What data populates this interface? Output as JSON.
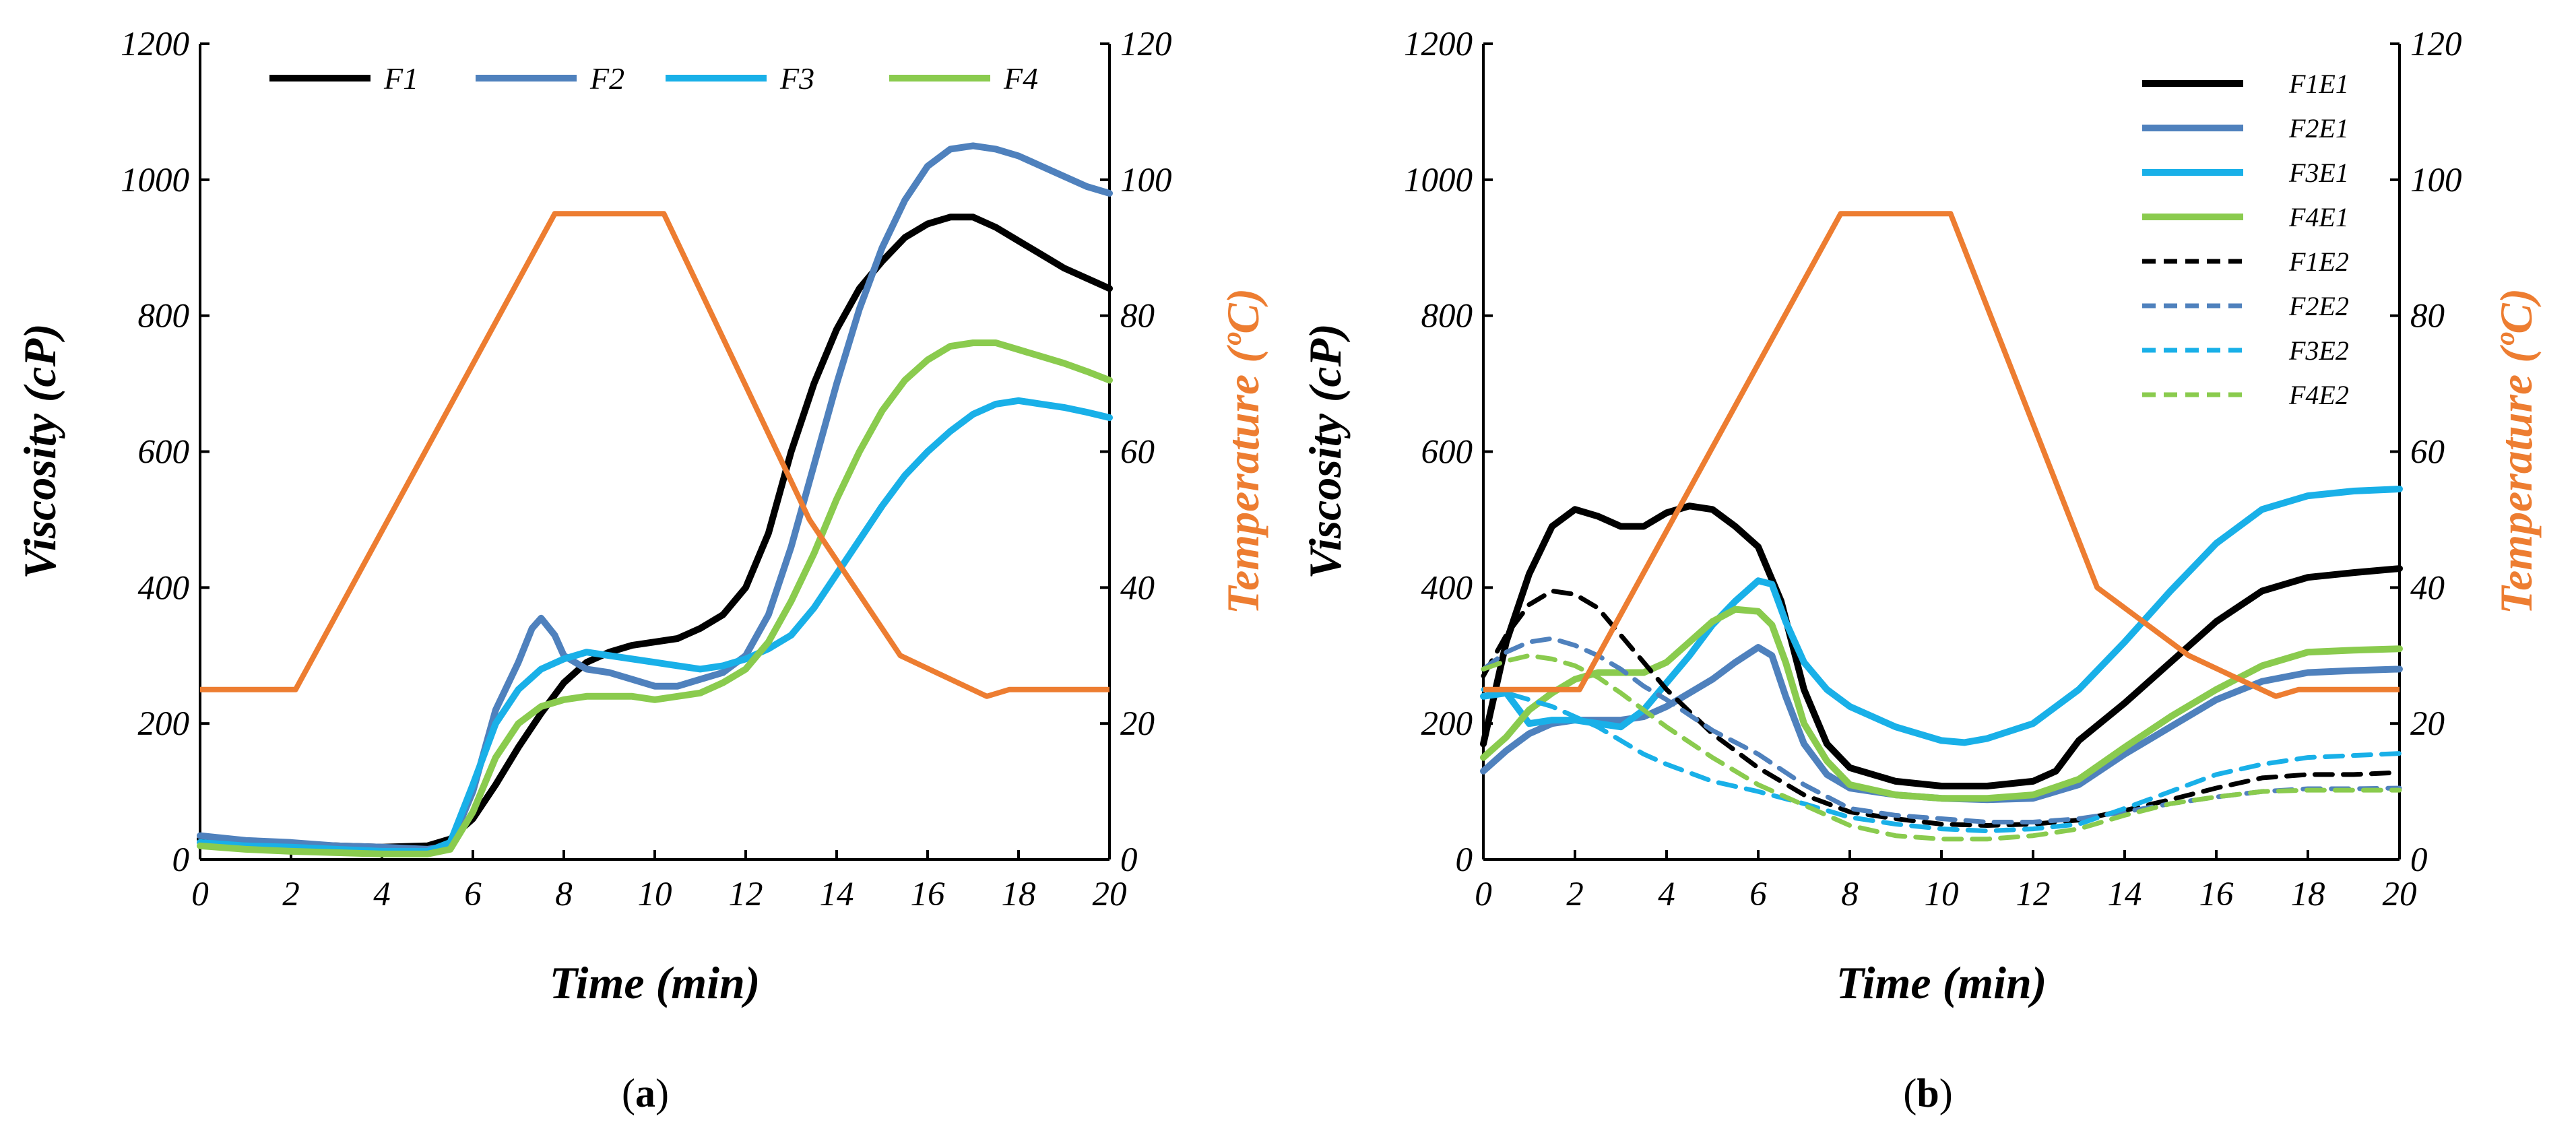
{
  "colors": {
    "F1": "#000000",
    "F2": "#4F81BD",
    "F3": "#19B0E8",
    "F4": "#8ACB4E",
    "temperature": "#ED7D31"
  },
  "chart_data": [
    {
      "panel": "a",
      "panel_label": "a",
      "type": "line",
      "xlabel": "Time (min)",
      "ylabel": "Viscosity (cP)",
      "y2label": "Temperature (ºC)",
      "xlim": [
        0,
        20
      ],
      "ylim": [
        0,
        1200
      ],
      "y2lim": [
        0,
        120
      ],
      "xticks": [
        "0",
        "2",
        "4",
        "6",
        "8",
        "10",
        "12",
        "14",
        "16",
        "18",
        "20"
      ],
      "yticks": [
        "0",
        "200",
        "400",
        "600",
        "800",
        "1000",
        "1200"
      ],
      "y2ticks": [
        "0",
        "20",
        "40",
        "60",
        "80",
        "100",
        "120"
      ],
      "legend_position": "top",
      "series": [
        {
          "name": "F1",
          "key": "F1",
          "dash": false,
          "x": [
            0,
            1,
            2,
            3,
            4,
            5,
            5.5,
            6,
            6.5,
            7,
            7.5,
            8,
            8.5,
            9,
            9.5,
            10,
            10.5,
            11,
            11.5,
            12,
            12.5,
            13,
            13.5,
            14,
            14.5,
            15,
            15.5,
            16,
            16.5,
            17,
            17.5,
            18,
            18.5,
            19,
            19.5,
            20
          ],
          "y": [
            30,
            25,
            22,
            20,
            18,
            20,
            30,
            60,
            110,
            165,
            215,
            260,
            290,
            305,
            315,
            320,
            325,
            340,
            360,
            400,
            480,
            600,
            700,
            780,
            840,
            880,
            915,
            935,
            945,
            945,
            930,
            910,
            890,
            870,
            855,
            840
          ]
        },
        {
          "name": "F2",
          "key": "F2",
          "dash": false,
          "x": [
            0,
            1,
            2,
            3,
            4,
            5,
            5.5,
            6,
            6.5,
            7,
            7.3,
            7.5,
            7.8,
            8,
            8.5,
            9,
            9.5,
            10,
            10.5,
            11,
            11.5,
            12,
            12.5,
            13,
            13.5,
            14,
            14.5,
            15,
            15.5,
            16,
            16.5,
            17,
            17.5,
            18,
            18.5,
            19,
            19.5,
            20
          ],
          "y": [
            35,
            28,
            25,
            20,
            18,
            15,
            20,
            100,
            220,
            290,
            340,
            355,
            330,
            300,
            280,
            275,
            265,
            255,
            255,
            265,
            275,
            300,
            360,
            460,
            580,
            700,
            810,
            900,
            970,
            1020,
            1045,
            1050,
            1045,
            1035,
            1020,
            1005,
            990,
            980
          ]
        },
        {
          "name": "F3",
          "key": "F3",
          "dash": false,
          "x": [
            0,
            1,
            2,
            3,
            4,
            5,
            5.5,
            6,
            6.5,
            7,
            7.5,
            8,
            8.5,
            9,
            9.5,
            10,
            10.5,
            11,
            11.5,
            12,
            12.5,
            13,
            13.5,
            14,
            14.5,
            15,
            15.5,
            16,
            16.5,
            17,
            17.5,
            18,
            18.5,
            19,
            19.5,
            20
          ],
          "y": [
            25,
            20,
            18,
            15,
            12,
            12,
            25,
            110,
            200,
            250,
            280,
            295,
            305,
            300,
            295,
            290,
            285,
            280,
            285,
            295,
            310,
            330,
            370,
            420,
            470,
            520,
            565,
            600,
            630,
            655,
            670,
            675,
            670,
            665,
            658,
            650
          ]
        },
        {
          "name": "F4",
          "key": "F4",
          "dash": false,
          "x": [
            0,
            1,
            2,
            3,
            4,
            5,
            5.5,
            6,
            6.5,
            7,
            7.5,
            8,
            8.5,
            9,
            9.5,
            10,
            10.5,
            11,
            11.5,
            12,
            12.5,
            13,
            13.5,
            14,
            14.5,
            15,
            15.5,
            16,
            16.5,
            17,
            17.5,
            18,
            18.5,
            19,
            19.5,
            20
          ],
          "y": [
            20,
            15,
            12,
            10,
            8,
            8,
            15,
            70,
            150,
            200,
            225,
            235,
            240,
            240,
            240,
            235,
            240,
            245,
            260,
            280,
            320,
            380,
            450,
            530,
            600,
            660,
            705,
            735,
            755,
            760,
            760,
            750,
            740,
            730,
            718,
            705
          ]
        }
      ],
      "temperature": {
        "name": "Temperature",
        "x": [
          0,
          2.1,
          7.8,
          8.2,
          10.2,
          13.4,
          15.4,
          17.3,
          17.8,
          20
        ],
        "y": [
          25,
          25,
          95,
          95,
          95,
          50,
          30,
          24,
          25,
          25
        ]
      }
    },
    {
      "panel": "b",
      "panel_label": "b",
      "type": "line",
      "xlabel": "Time (min)",
      "ylabel": "Viscosity (cP)",
      "y2label": "Temperature (ºC)",
      "xlim": [
        0,
        20
      ],
      "ylim": [
        0,
        1200
      ],
      "y2lim": [
        0,
        120
      ],
      "xticks": [
        "0",
        "2",
        "4",
        "6",
        "8",
        "10",
        "12",
        "14",
        "16",
        "18",
        "20"
      ],
      "yticks": [
        "0",
        "200",
        "400",
        "600",
        "800",
        "1000",
        "1200"
      ],
      "y2ticks": [
        "0",
        "20",
        "40",
        "60",
        "80",
        "100",
        "120"
      ],
      "legend_position": "top-right",
      "series": [
        {
          "name": "F1E1",
          "key": "F1",
          "dash": false,
          "x": [
            0,
            0.5,
            1,
            1.5,
            2,
            2.5,
            3,
            3.5,
            4,
            4.5,
            5,
            5.5,
            6,
            6.5,
            7,
            7.5,
            8,
            9,
            10,
            11,
            12,
            12.5,
            13,
            14,
            15,
            16,
            17,
            18,
            19,
            20
          ],
          "y": [
            170,
            320,
            420,
            490,
            515,
            505,
            490,
            490,
            510,
            520,
            515,
            490,
            460,
            380,
            250,
            170,
            135,
            115,
            108,
            108,
            115,
            130,
            175,
            230,
            290,
            350,
            395,
            415,
            422,
            428
          ]
        },
        {
          "name": "F2E1",
          "key": "F2",
          "dash": false,
          "x": [
            0,
            0.5,
            1,
            1.5,
            2,
            2.5,
            3,
            3.5,
            4,
            4.5,
            5,
            5.5,
            6,
            6.3,
            6.6,
            7,
            7.5,
            8,
            9,
            10,
            11,
            12,
            13,
            14,
            15,
            16,
            17,
            18,
            19,
            20
          ],
          "y": [
            130,
            160,
            185,
            200,
            205,
            205,
            205,
            210,
            225,
            245,
            265,
            290,
            312,
            300,
            240,
            170,
            125,
            105,
            95,
            90,
            88,
            90,
            110,
            155,
            195,
            235,
            262,
            275,
            278,
            280
          ]
        },
        {
          "name": "F3E1",
          "key": "F3",
          "dash": false,
          "x": [
            0,
            0.5,
            1,
            1.5,
            2,
            2.5,
            3,
            3.5,
            4,
            4.5,
            5,
            5.5,
            6,
            6.3,
            6.6,
            7,
            7.5,
            8,
            9,
            10,
            10.5,
            11,
            12,
            13,
            14,
            15,
            16,
            17,
            18,
            19,
            20
          ],
          "y": [
            240,
            245,
            200,
            205,
            205,
            200,
            195,
            220,
            260,
            300,
            345,
            380,
            410,
            405,
            350,
            290,
            250,
            225,
            195,
            175,
            172,
            178,
            200,
            250,
            320,
            395,
            465,
            515,
            535,
            542,
            545
          ]
        },
        {
          "name": "F4E1",
          "key": "F4",
          "dash": false,
          "x": [
            0,
            0.5,
            1,
            1.5,
            2,
            2.5,
            3,
            3.5,
            4,
            4.5,
            5,
            5.5,
            6,
            6.3,
            6.6,
            7,
            7.5,
            8,
            9,
            10,
            11,
            12,
            13,
            14,
            15,
            16,
            17,
            18,
            19,
            20
          ],
          "y": [
            150,
            180,
            220,
            245,
            265,
            275,
            275,
            275,
            290,
            320,
            350,
            368,
            365,
            345,
            290,
            200,
            145,
            110,
            95,
            90,
            90,
            95,
            118,
            165,
            210,
            250,
            285,
            305,
            308,
            310
          ]
        },
        {
          "name": "F1E2",
          "key": "F1",
          "dash": true,
          "x": [
            0,
            0.5,
            1,
            1.5,
            2,
            2.5,
            3,
            3.5,
            4,
            5,
            6,
            7,
            8,
            9,
            10,
            11,
            12,
            13,
            14,
            15,
            16,
            17,
            18,
            19,
            20
          ],
          "y": [
            270,
            330,
            375,
            395,
            390,
            370,
            330,
            290,
            250,
            185,
            135,
            95,
            70,
            60,
            52,
            50,
            52,
            58,
            72,
            88,
            105,
            120,
            125,
            125,
            128
          ]
        },
        {
          "name": "F2E2",
          "key": "F2",
          "dash": true,
          "x": [
            0,
            0.5,
            1,
            1.5,
            2,
            2.5,
            3,
            3.5,
            4,
            5,
            6,
            7,
            8,
            9,
            10,
            11,
            12,
            13,
            14,
            15,
            16,
            17,
            18,
            19,
            20
          ],
          "y": [
            280,
            305,
            320,
            325,
            315,
            300,
            280,
            255,
            235,
            190,
            155,
            110,
            75,
            65,
            60,
            55,
            55,
            60,
            70,
            82,
            92,
            100,
            104,
            104,
            105
          ]
        },
        {
          "name": "F3E2",
          "key": "F3",
          "dash": true,
          "x": [
            0,
            0.5,
            1,
            1.5,
            2,
            2.5,
            3,
            3.5,
            4,
            5,
            6,
            7,
            8,
            9,
            10,
            11,
            12,
            13,
            14,
            15,
            16,
            17,
            18,
            19,
            20
          ],
          "y": [
            250,
            245,
            235,
            225,
            210,
            195,
            175,
            155,
            140,
            115,
            100,
            82,
            62,
            52,
            45,
            42,
            45,
            52,
            75,
            100,
            125,
            140,
            150,
            153,
            156
          ]
        },
        {
          "name": "F4E2",
          "key": "F4",
          "dash": true,
          "x": [
            0,
            0.5,
            1,
            1.5,
            2,
            2.5,
            3,
            3.5,
            4,
            5,
            6,
            7,
            8,
            9,
            10,
            11,
            12,
            13,
            14,
            15,
            16,
            17,
            18,
            19,
            20
          ],
          "y": [
            280,
            292,
            300,
            295,
            285,
            268,
            245,
            220,
            195,
            150,
            110,
            80,
            50,
            35,
            30,
            30,
            35,
            45,
            65,
            82,
            92,
            100,
            102,
            102,
            102
          ]
        }
      ],
      "temperature": {
        "name": "Temperature",
        "x": [
          0,
          2.1,
          7.8,
          8.2,
          10.2,
          13.4,
          15.4,
          17.3,
          17.8,
          20
        ],
        "y": [
          25,
          25,
          95,
          95,
          95,
          40,
          30,
          24,
          25,
          25
        ]
      }
    }
  ]
}
